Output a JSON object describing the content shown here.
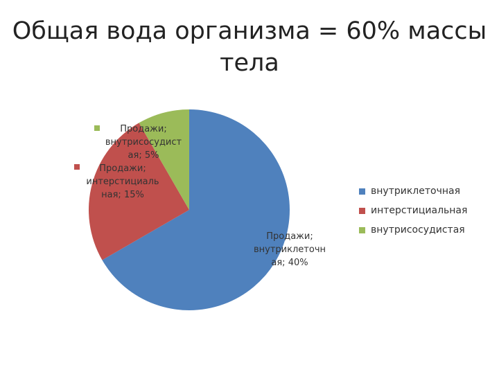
{
  "title_lines": [
    "Общая вода организма = 60% массы",
    "тела"
  ],
  "chart_data": {
    "type": "pie",
    "series_name": "Продажи",
    "categories": [
      "внутриклеточная",
      "интерстициальная",
      "внутрисосудистая"
    ],
    "values": [
      40,
      15,
      5
    ],
    "data_labels": [
      [
        "Продажи;",
        "внутриклеточн",
        "ая; 40%"
      ],
      [
        "Продажи;",
        "интерстициаль",
        "ная; 15%"
      ],
      [
        "Продажи;",
        "внутрисосудист",
        "ая; 5%"
      ]
    ],
    "colors": [
      "#4F81BD",
      "#C0504D",
      "#9BBB59"
    ],
    "legend_position": "right"
  }
}
